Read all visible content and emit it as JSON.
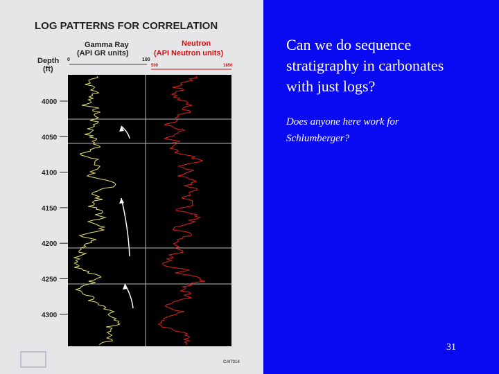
{
  "figure": {
    "title": "LOG PATTERNS FOR CORRELATION",
    "depth_label": [
      "Depth",
      "(ft)"
    ],
    "gamma": {
      "name": "Gamma Ray",
      "units": "(API GR units)",
      "scale": [
        "0",
        "100"
      ]
    },
    "neutron": {
      "name": "Neutron",
      "units": "(API Neutron units)",
      "scale": [
        "500",
        "1850"
      ]
    },
    "depths": [
      "4000",
      "4050",
      "4100",
      "4150",
      "4200",
      "4250",
      "4300"
    ],
    "code": "CAI7314"
  },
  "slide": {
    "question": "Can we do sequence stratigraphy in carbonates with just logs?",
    "aside": "Does anyone here work for Schlumberger?",
    "page": "31"
  }
}
